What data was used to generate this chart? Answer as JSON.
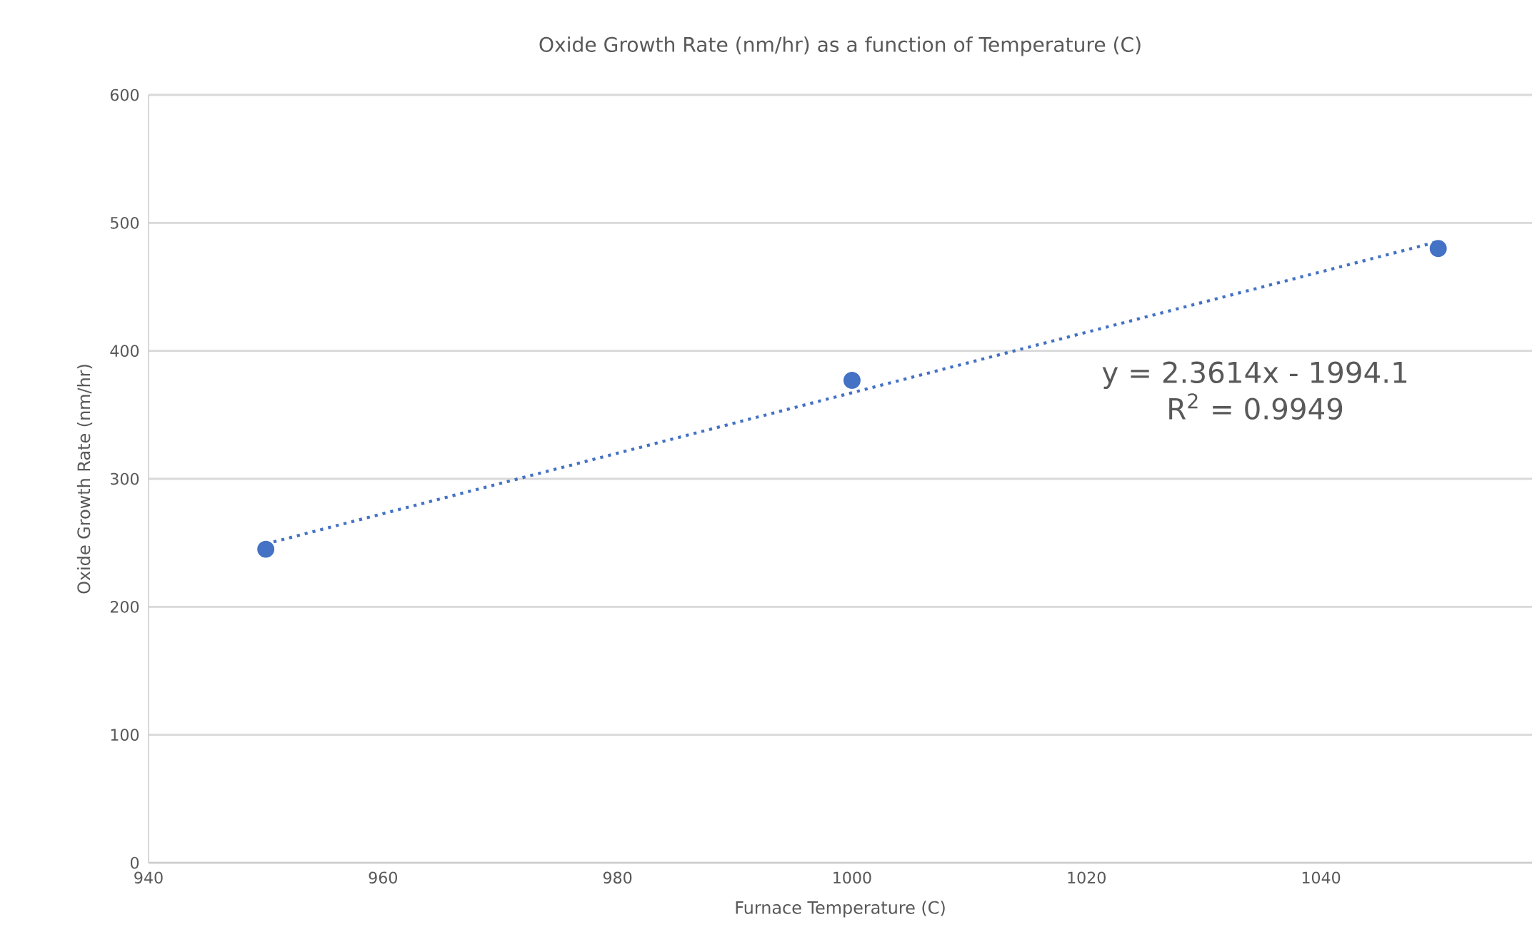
{
  "chart_data": {
    "type": "scatter",
    "title": "Oxide Growth Rate (nm/hr) as a function of Temperature (C)",
    "xlabel": "Furnace Temperature (C)",
    "ylabel": "Oxide Growth Rate (nm/hr)",
    "x": [
      950,
      1000,
      1050
    ],
    "series": [
      {
        "color": "#4472c4",
        "marker": "circle",
        "values": [
          245,
          377,
          480
        ]
      },
      {
        "type": "line",
        "color": "#4472c4",
        "line_style": "dotted",
        "marker": "none",
        "x": [
          950,
          1050
        ],
        "values": [
          249.2,
          485.4
        ]
      }
    ],
    "annotations": [
      "y = 2.3614x - 1994.1",
      "R$^{2}$ = 0.9949"
    ],
    "xlim": [
      940,
      1058
    ],
    "xticks": [
      940,
      960,
      980,
      1000,
      1020,
      1040
    ],
    "ylim": [
      0,
      600
    ],
    "yticks": [
      0,
      100,
      200,
      300,
      400,
      500,
      600
    ],
    "grid": "y"
  }
}
